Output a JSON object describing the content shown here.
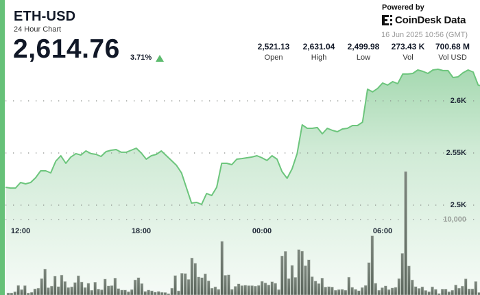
{
  "header": {
    "symbol": "ETH-USD",
    "subtitle": "24 Hour Chart",
    "price": "2,614.76",
    "change_pct": "3.71%",
    "change_direction": "up",
    "powered_by": "Powered by",
    "brand_logo": "CoinDesk Data",
    "timestamp": "16 Jun 2025 10:56 (GMT)"
  },
  "stats": [
    {
      "value": "2,521.13",
      "label": "Open"
    },
    {
      "value": "2,631.04",
      "label": "High"
    },
    {
      "value": "2,499.98",
      "label": "Low"
    },
    {
      "value": "273.43 K",
      "label": "Vol"
    },
    {
      "value": "700.68 M",
      "label": "Vol USD"
    }
  ],
  "colors": {
    "accent": "#66c178",
    "line": "#6cc57c",
    "volume_bar": "#5f6a61",
    "up": "#5dbb6e"
  },
  "chart_data": {
    "type": "area",
    "price_axis": {
      "ticks": [
        2500,
        2550,
        2600
      ],
      "tick_labels": [
        "2.5K",
        "2.55K",
        "2.6K"
      ]
    },
    "volume_axis": {
      "ticks": [
        10000
      ],
      "tick_labels": [
        "10,000"
      ]
    },
    "time_axis": {
      "tick_labels": [
        "12:00",
        "18:00",
        "00:00",
        "06:00"
      ]
    },
    "grid": true,
    "price_series": {
      "x": [
        "11:15",
        "11:30",
        "11:45",
        "12:00",
        "12:15",
        "12:30",
        "12:45",
        "13:00",
        "13:15",
        "13:30",
        "13:45",
        "14:00",
        "14:15",
        "14:30",
        "14:45",
        "15:00",
        "15:15",
        "15:30",
        "15:45",
        "16:00",
        "16:15",
        "16:30",
        "16:45",
        "17:00",
        "17:15",
        "17:30",
        "17:45",
        "18:00",
        "18:15",
        "18:30",
        "18:45",
        "19:00",
        "19:15",
        "19:30",
        "19:45",
        "20:00",
        "20:15",
        "20:30",
        "20:45",
        "21:00",
        "21:15",
        "21:30",
        "21:45",
        "22:00",
        "22:15",
        "22:30",
        "22:45",
        "23:00",
        "23:15",
        "23:30",
        "23:45",
        "00:00",
        "00:15",
        "00:30",
        "00:45",
        "01:00",
        "01:15",
        "01:30",
        "01:45",
        "02:00",
        "02:15",
        "02:30",
        "02:45",
        "03:00",
        "03:15",
        "03:30",
        "03:45",
        "04:00",
        "04:15",
        "04:30",
        "04:45",
        "05:00",
        "05:15",
        "05:30",
        "05:45",
        "06:00",
        "06:15",
        "06:30",
        "06:45",
        "07:00",
        "07:15",
        "07:30",
        "07:45",
        "08:00",
        "08:15",
        "08:30",
        "08:45",
        "09:00",
        "09:15",
        "09:30",
        "09:45",
        "10:00",
        "10:15",
        "10:30",
        "10:45",
        "10:56"
      ],
      "values": [
        2517.1,
        2516.4,
        2516.4,
        2521.7,
        2520.4,
        2521.7,
        2526.3,
        2532.9,
        2532.9,
        2530.9,
        2542.1,
        2547.4,
        2540.1,
        2546.1,
        2549.4,
        2548.0,
        2552.0,
        2549.4,
        2548.7,
        2546.7,
        2551.3,
        2552.6,
        2553.3,
        2550.7,
        2550.7,
        2552.6,
        2554.6,
        2550.0,
        2544.1,
        2547.4,
        2548.7,
        2552.0,
        2547.4,
        2542.8,
        2538.2,
        2530.9,
        2516.4,
        2502.0,
        2502.6,
        2500.7,
        2511.2,
        2509.2,
        2517.1,
        2540.1,
        2540.1,
        2538.8,
        2544.1,
        2544.7,
        2545.4,
        2546.1,
        2547.4,
        2545.4,
        2542.8,
        2547.4,
        2544.1,
        2532.2,
        2525.7,
        2534.9,
        2549.4,
        2577.0,
        2573.7,
        2573.7,
        2574.4,
        2568.4,
        2573.7,
        2571.7,
        2570.4,
        2573.0,
        2573.7,
        2576.3,
        2576.3,
        2579.6,
        2611.2,
        2608.6,
        2611.9,
        2617.1,
        2615.2,
        2618.4,
        2616.5,
        2625.7,
        2625.7,
        2626.3,
        2629.6,
        2628.3,
        2626.3,
        2629.6,
        2630.3,
        2629.0,
        2629.0,
        2622.4,
        2623.0,
        2627.0,
        2629.6,
        2627.6,
        2615.2,
        2614.76
      ]
    },
    "volume_series": {
      "values": [
        270,
        270,
        450,
        1270,
        730,
        1250,
        270,
        360,
        820,
        910,
        2180,
        3450,
        970,
        1180,
        2520,
        1120,
        2640,
        1790,
        1000,
        1090,
        1660,
        2550,
        1730,
        1000,
        1550,
        640,
        1700,
        790,
        700,
        2120,
        1210,
        1250,
        2250,
        850,
        660,
        660,
        450,
        730,
        2000,
        2300,
        1520,
        480,
        660,
        550,
        390,
        480,
        360,
        340,
        180,
        910,
        2580,
        550,
        2880,
        2850,
        2060,
        4910,
        4210,
        2390,
        2300,
        2820,
        1880,
        910,
        1090,
        760,
        7120,
        2610,
        2670,
        760,
        1150,
        1480,
        1250,
        1300,
        1250,
        1250,
        1180,
        1270,
        1820,
        1610,
        1340,
        1760,
        1550,
        730,
        5180,
        5790,
        2180,
        3940,
        2340,
        6030,
        5820,
        3880,
        4660,
        2430,
        1850,
        1520,
        2250,
        1060,
        1120,
        1060,
        640,
        730,
        760,
        640,
        2360,
        1030,
        760,
        570,
        1000,
        1270,
        4300,
        7850,
        1550,
        640,
        970,
        1210,
        730,
        940,
        1030,
        2180,
        5520,
        16360,
        3850,
        2000,
        1120,
        880,
        1090,
        610,
        450,
        1090,
        760,
        210,
        790,
        790,
        450,
        640,
        1340,
        910,
        1180,
        2150,
        820,
        820,
        1790,
        340
      ]
    }
  }
}
